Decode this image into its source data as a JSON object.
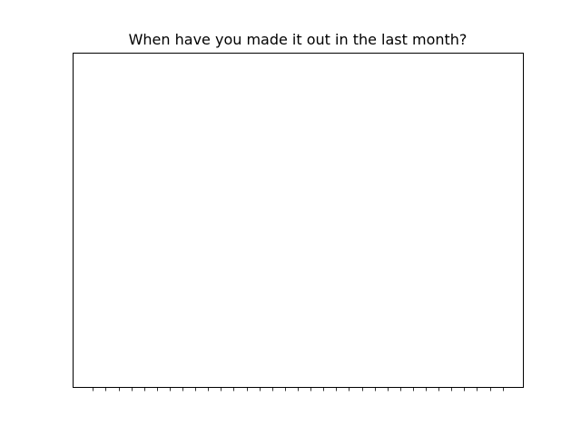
{
  "chart_data": {
    "type": "bar",
    "title": "When have you made it out in the last month?",
    "xlabel": "",
    "ylabel": "",
    "categories": [
      "",
      "",
      "",
      "",
      "",
      "",
      "",
      "",
      "",
      "",
      "",
      "",
      "",
      "",
      "",
      "",
      "",
      "",
      "",
      "",
      "",
      "",
      "",
      "",
      "",
      "",
      "",
      "",
      "",
      "",
      "",
      "",
      ""
    ],
    "values": [
      0,
      0,
      0,
      0,
      0,
      0,
      0,
      0,
      0,
      0,
      0,
      0,
      0,
      0,
      0,
      0,
      0,
      0,
      0,
      0,
      0,
      0,
      0,
      0,
      0,
      0,
      0,
      0,
      0,
      0,
      0,
      0,
      0
    ],
    "x_tick_labels_visible": false,
    "y_ticks_visible": false,
    "grid": false,
    "legend": "none"
  },
  "colors": {
    "background": "#ffffff",
    "axes_edge": "#000000",
    "tick": "#000000",
    "title": "#000000"
  }
}
